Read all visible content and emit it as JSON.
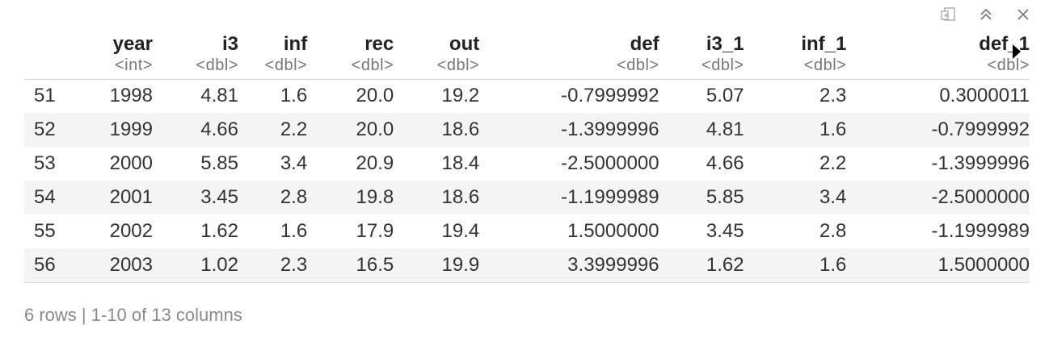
{
  "toolbar": {
    "icons": [
      "export-icon",
      "collapse-icon",
      "close-icon"
    ]
  },
  "table": {
    "columns": [
      {
        "name": "",
        "type": ""
      },
      {
        "name": "year",
        "type": "<int>"
      },
      {
        "name": "i3",
        "type": "<dbl>"
      },
      {
        "name": "inf",
        "type": "<dbl>"
      },
      {
        "name": "rec",
        "type": "<dbl>"
      },
      {
        "name": "out",
        "type": "<dbl>"
      },
      {
        "name": "def",
        "type": "<dbl>"
      },
      {
        "name": "i3_1",
        "type": "<dbl>"
      },
      {
        "name": "inf_1",
        "type": "<dbl>"
      },
      {
        "name": "def_1",
        "type": "<dbl>"
      }
    ],
    "rows": [
      [
        "51",
        "1998",
        "4.81",
        "1.6",
        "20.0",
        "19.2",
        "-0.7999992",
        "5.07",
        "2.3",
        "0.3000011"
      ],
      [
        "52",
        "1999",
        "4.66",
        "2.2",
        "20.0",
        "18.6",
        "-1.3999996",
        "4.81",
        "1.6",
        "-0.7999992"
      ],
      [
        "53",
        "2000",
        "5.85",
        "3.4",
        "20.9",
        "18.4",
        "-2.5000000",
        "4.66",
        "2.2",
        "-1.3999996"
      ],
      [
        "54",
        "2001",
        "3.45",
        "2.8",
        "19.8",
        "18.6",
        "-1.1999989",
        "5.85",
        "3.4",
        "-2.5000000"
      ],
      [
        "55",
        "2002",
        "1.62",
        "1.6",
        "17.9",
        "19.4",
        "1.5000000",
        "3.45",
        "2.8",
        "-1.1999989"
      ],
      [
        "56",
        "2003",
        "1.02",
        "2.3",
        "16.5",
        "19.9",
        "3.3999996",
        "1.62",
        "1.6",
        "1.5000000"
      ]
    ]
  },
  "footer": {
    "text": "6 rows | 1-10 of 13 columns"
  }
}
